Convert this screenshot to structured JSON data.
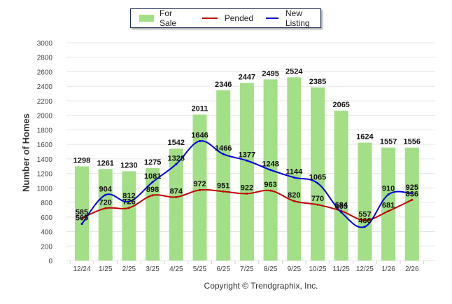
{
  "chart_data": {
    "type": "bar",
    "title": "",
    "xlabel": "",
    "ylabel": "Number of Homes",
    "ylim": [
      0,
      3000
    ],
    "yticks": [
      0,
      200,
      400,
      600,
      800,
      1000,
      1200,
      1400,
      1600,
      1800,
      2000,
      2200,
      2400,
      2600,
      2800,
      3000
    ],
    "grid": true,
    "legend_position": "top-center",
    "categories": [
      "12/24",
      "1/25",
      "2/25",
      "3/25",
      "4/25",
      "5/25",
      "6/25",
      "7/25",
      "8/25",
      "9/25",
      "10/25",
      "11/25",
      "12/25",
      "1/26",
      "2/26"
    ],
    "series": [
      {
        "name": "For Sale",
        "kind": "bar",
        "color": "#a3df87",
        "values": [
          1298,
          1261,
          1230,
          1275,
          1542,
          2011,
          2346,
          2447,
          2495,
          2524,
          2385,
          2065,
          1624,
          1557,
          1556
        ]
      },
      {
        "name": "Pended",
        "kind": "line",
        "color": "#c00000",
        "values": [
          585,
          720,
          726,
          898,
          874,
          972,
          951,
          922,
          963,
          820,
          770,
          684,
          557,
          681,
          836
        ]
      },
      {
        "name": "New Listing",
        "kind": "line",
        "color": "#0000e0",
        "values": [
          505,
          904,
          812,
          1081,
          1328,
          1646,
          1466,
          1377,
          1248,
          1144,
          1065,
          665,
          466,
          910,
          925
        ]
      }
    ]
  },
  "legend": {
    "items": [
      {
        "label": "For Sale",
        "color": "#a3df87"
      },
      {
        "label": "Pended",
        "color": "#c00000"
      },
      {
        "label": "New Listing",
        "color": "#0000e0"
      }
    ]
  },
  "footer": {
    "copyright": "Copyright © Trendgraphix, Inc."
  }
}
